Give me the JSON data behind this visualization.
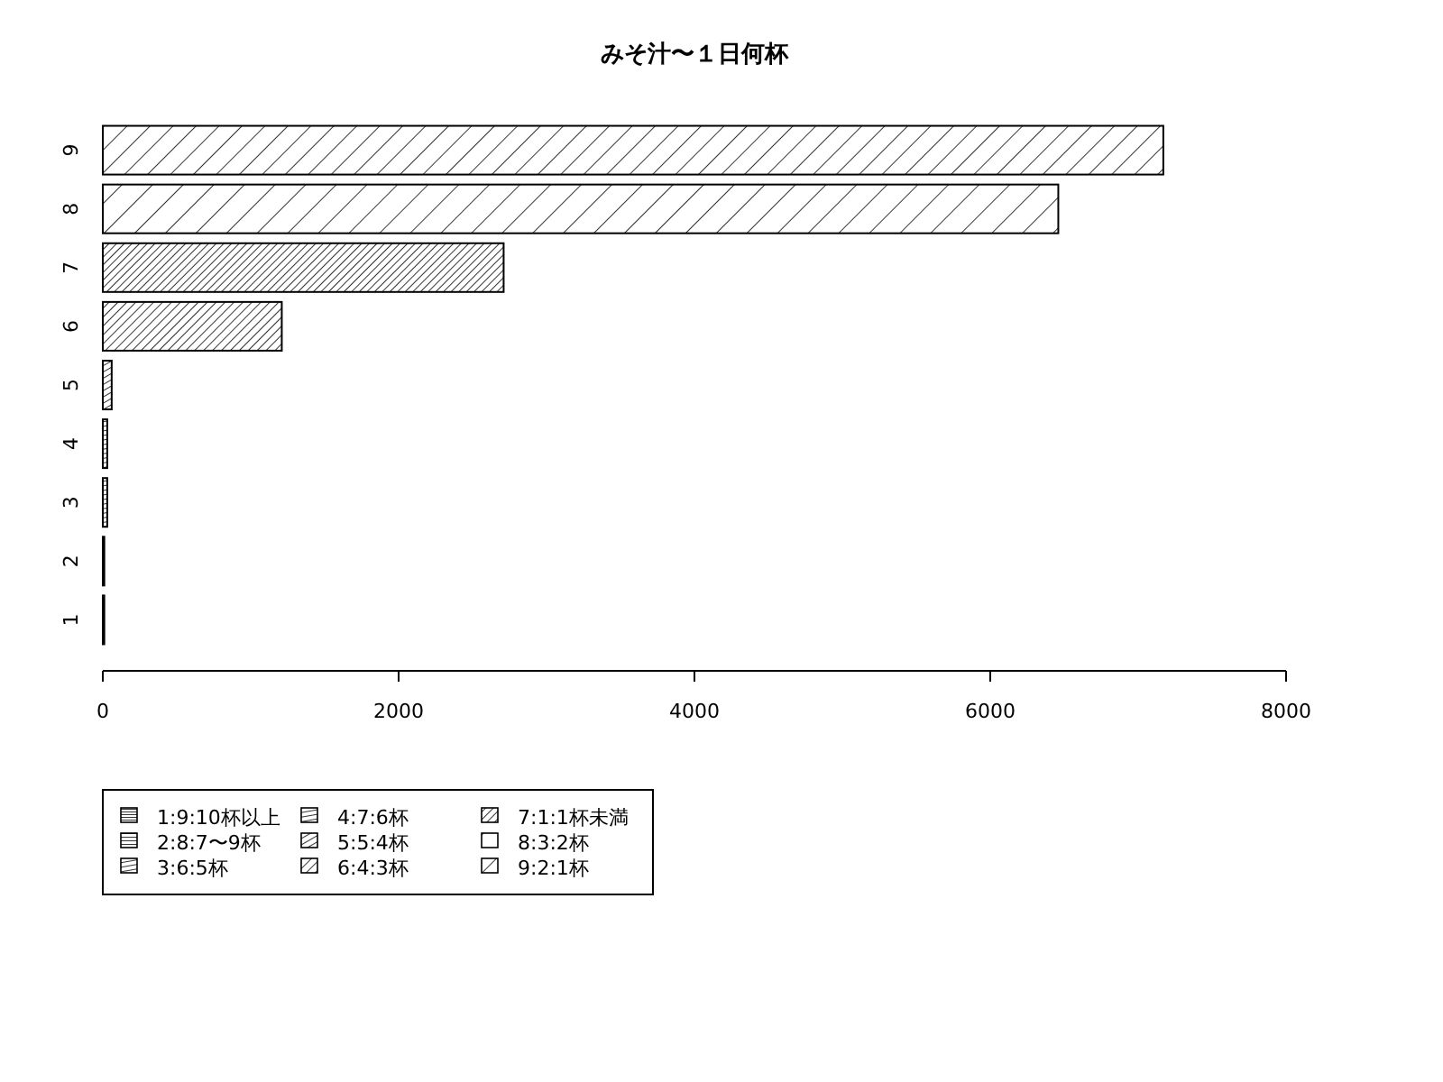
{
  "chart_data": {
    "type": "bar",
    "orientation": "horizontal",
    "title": "みそ汁〜１日何杯",
    "categories": [
      "9",
      "8",
      "7",
      "6",
      "5",
      "4",
      "3",
      "2",
      "1"
    ],
    "series": [
      {
        "name": "1:9:10杯以上",
        "color": "#000000",
        "values": [
          null,
          null,
          null,
          null,
          null,
          null,
          null,
          null,
          10
        ]
      },
      {
        "name": "2:8:7〜9杯",
        "color": "#000000",
        "values": [
          null,
          null,
          null,
          null,
          null,
          null,
          null,
          10,
          null
        ]
      },
      {
        "name": "3:6:5杯",
        "color": "#000000",
        "values": [
          null,
          null,
          null,
          null,
          null,
          null,
          30,
          null,
          null
        ]
      },
      {
        "name": "4:7:6杯",
        "color": "#000000",
        "values": [
          null,
          null,
          null,
          null,
          null,
          30,
          null,
          null,
          null
        ]
      },
      {
        "name": "5:5:4杯",
        "color": "#000000",
        "values": [
          null,
          null,
          null,
          null,
          60,
          null,
          null,
          null,
          null
        ]
      },
      {
        "name": "6:4:3杯",
        "color": "#000000",
        "values": [
          null,
          null,
          null,
          1210,
          null,
          null,
          null,
          null,
          null
        ]
      },
      {
        "name": "7:1:1杯未満",
        "color": "#000000",
        "values": [
          null,
          null,
          2710,
          null,
          null,
          null,
          null,
          null,
          null
        ]
      },
      {
        "name": "8:3:2杯",
        "color": "#000000",
        "values": [
          null,
          6460,
          null,
          null,
          null,
          null,
          null,
          null,
          null
        ]
      },
      {
        "name": "9:2:1杯",
        "color": "#000000",
        "values": [
          7170,
          null,
          null,
          null,
          null,
          null,
          null,
          null,
          null
        ]
      }
    ],
    "xlim": [
      0,
      8000
    ],
    "xticks": [
      0,
      2000,
      4000,
      6000,
      8000
    ],
    "legend": "bottom left"
  }
}
